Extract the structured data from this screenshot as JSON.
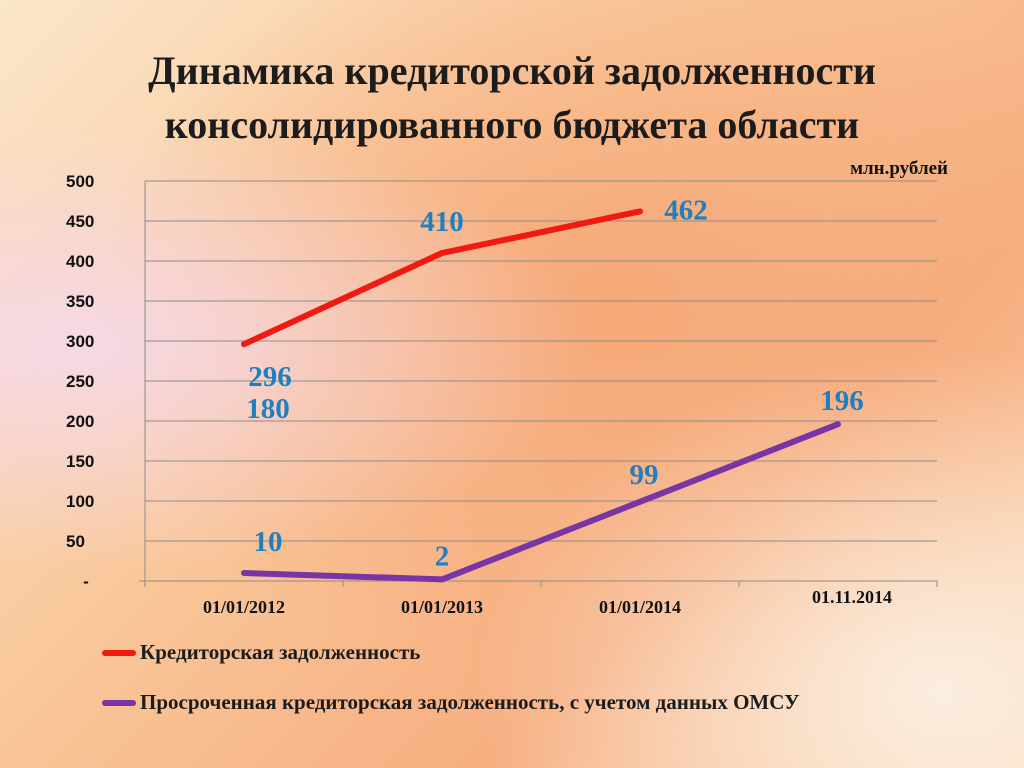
{
  "title": {
    "line1": "Динамика кредиторской задолженности",
    "line2": "консолидированного бюджета области"
  },
  "chart_data": {
    "type": "line",
    "unit_label": "млн.рублей",
    "categories": [
      "01/01/2012",
      "01/01/2013",
      "01/01/2014",
      "01.11.2014"
    ],
    "ylim": [
      0,
      500
    ],
    "yticks": [
      0,
      50,
      100,
      150,
      200,
      250,
      300,
      350,
      400,
      450,
      500
    ],
    "ytick_labels": [
      "-",
      "50",
      "100",
      "150",
      "200",
      "250",
      "300",
      "350",
      "400",
      "450",
      "500"
    ],
    "grid": true,
    "legend_position": "bottom",
    "series": [
      {
        "name": "Кредиторская задолженность",
        "color": "#f01a10",
        "values": [
          296,
          410,
          462,
          null
        ],
        "labels": [
          "296",
          "410",
          "462",
          ""
        ]
      },
      {
        "name": "Просроченная кредиторская задолженность, с учетом данных ОМСУ",
        "color": "#7a35a5",
        "values": [
          10,
          2,
          99,
          196
        ],
        "labels": [
          "10",
          "2",
          "99",
          "196"
        ]
      }
    ],
    "annotations": [
      {
        "text": "180",
        "x": "01/01/2012"
      }
    ]
  }
}
